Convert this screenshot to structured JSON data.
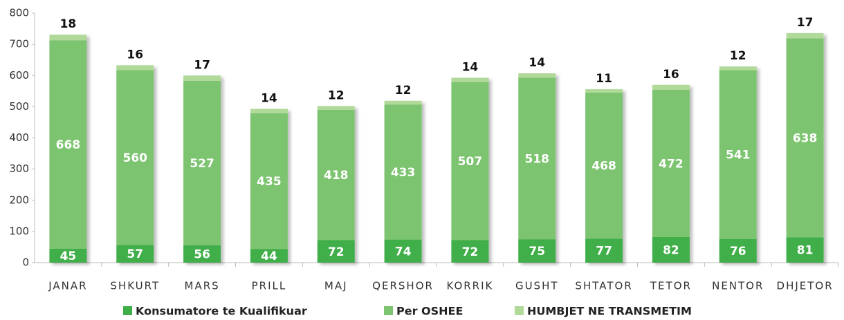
{
  "chart_data": {
    "type": "stacked_bar",
    "categories": [
      "JANAR",
      "SHKURT",
      "MARS",
      "PRILL",
      "MAJ",
      "QERSHOR",
      "KORRIK",
      "GUSHT",
      "SHTATOR",
      "TETOR",
      "NENTOR",
      "DHJETOR"
    ],
    "series": [
      {
        "name": "Konsumatore te Kualifikuar",
        "color": "#3fae49",
        "values": [
          45,
          57,
          56,
          44,
          72,
          74,
          72,
          75,
          77,
          82,
          76,
          81
        ]
      },
      {
        "name": "Per OSHEE",
        "color": "#7dc470",
        "values": [
          668,
          560,
          527,
          435,
          418,
          433,
          507,
          518,
          468,
          472,
          541,
          638
        ]
      },
      {
        "name": "HUMBJET NE TRANSMETIM",
        "color": "#b0d99a",
        "values": [
          18,
          16,
          17,
          14,
          12,
          12,
          14,
          14,
          11,
          16,
          12,
          17
        ]
      }
    ],
    "ylim": [
      0,
      800
    ],
    "yticks": [
      0,
      100,
      200,
      300,
      400,
      500,
      600,
      700,
      800
    ]
  }
}
